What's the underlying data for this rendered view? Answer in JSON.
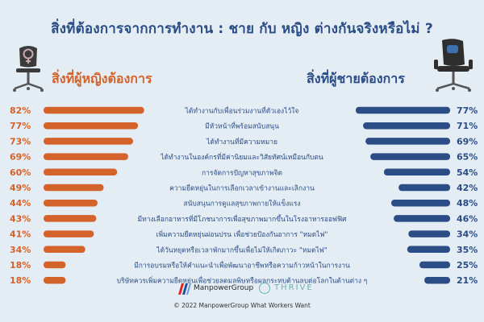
{
  "title": "สิ่งที่ต้องการจากการทำงาน : ชาย กับ หญิง ต่างกันจริงหรือไม่ ?",
  "women_heading": "สิ่งที่ผู้หญิงต้องการ",
  "men_heading": "สิ่งที่ผู้ชายต้องการ",
  "colors": {
    "women": "#d4622b",
    "men": "#2a4d86",
    "background": "#e4ecf4"
  },
  "icons": {
    "left": "office-chair-women-icon",
    "right": "office-chair-men-icon",
    "logo1": "manpowergroup-logo-icon",
    "logo2": "thrive-logo-icon"
  },
  "chart_data": {
    "type": "bar",
    "layout": "butterfly",
    "categories": [
      "ได้ทำงานกับเพื่อนร่วมงานที่ตัวเองไว้ใจ",
      "มีหัวหน้าที่พร้อมสนับสนุน",
      "ได้ทำงานที่มีความหมาย",
      "ได้ทำงานในองค์กรที่มีค่านิยมและวิสัยทัศน์เหมือนกับตน",
      "การจัดการปัญหาสุขภาพจิต",
      "ความยืดหยุ่นในการเลือกเวลาเข้างานและเลิกงาน",
      "สนับสนุนการดูแลสุขภาพกายให้แข็งแรง",
      "มีทางเลือกอาหารที่มีโภชนาการเพื่อสุขภาพมากขึ้นในโรงอาหารออฟฟิศ",
      "เพิ่มความยืดหยุ่นผ่อนปรน เพื่อช่วยป้องกันอาการ \"หมดไฟ\"",
      "ได้วันหยุดหรือเวลาพักมากขึ้นเพื่อไม่ให้เกิดภาวะ \"หมดไฟ\"",
      "มีการอบรมหรือให้คำแนะนำเพื่อพัฒนาอาชีพหรือความก้าวหน้าในการงาน",
      "บริษัทควรเพิ่มความยืดหยุ่นเพื่อช่วยลดมลพิษหรือผลกระทบด้านลบต่อโลกในด้านต่าง ๆ"
    ],
    "series": [
      {
        "name": "สิ่งที่ผู้หญิงต้องการ",
        "values": [
          82,
          77,
          73,
          69,
          60,
          49,
          44,
          43,
          41,
          34,
          18,
          18
        ],
        "labels": [
          "82%",
          "77%",
          "73%",
          "69%",
          "60%",
          "49%",
          "44%",
          "43%",
          "41%",
          "34%",
          "18%",
          "18%"
        ]
      },
      {
        "name": "สิ่งที่ผู้ชายต้องการ",
        "values": [
          77,
          71,
          69,
          65,
          54,
          42,
          48,
          46,
          34,
          35,
          25,
          21
        ],
        "labels": [
          "77%",
          "71%",
          "69%",
          "65%",
          "54%",
          "42%",
          "48%",
          "46%",
          "34%",
          "35%",
          "25%",
          "21%"
        ]
      }
    ]
  },
  "logos": {
    "manpower": "ManpowerGroup",
    "thrive": "THRIVE"
  },
  "footer": "© 2022 ManpowerGroup What Workers Want"
}
